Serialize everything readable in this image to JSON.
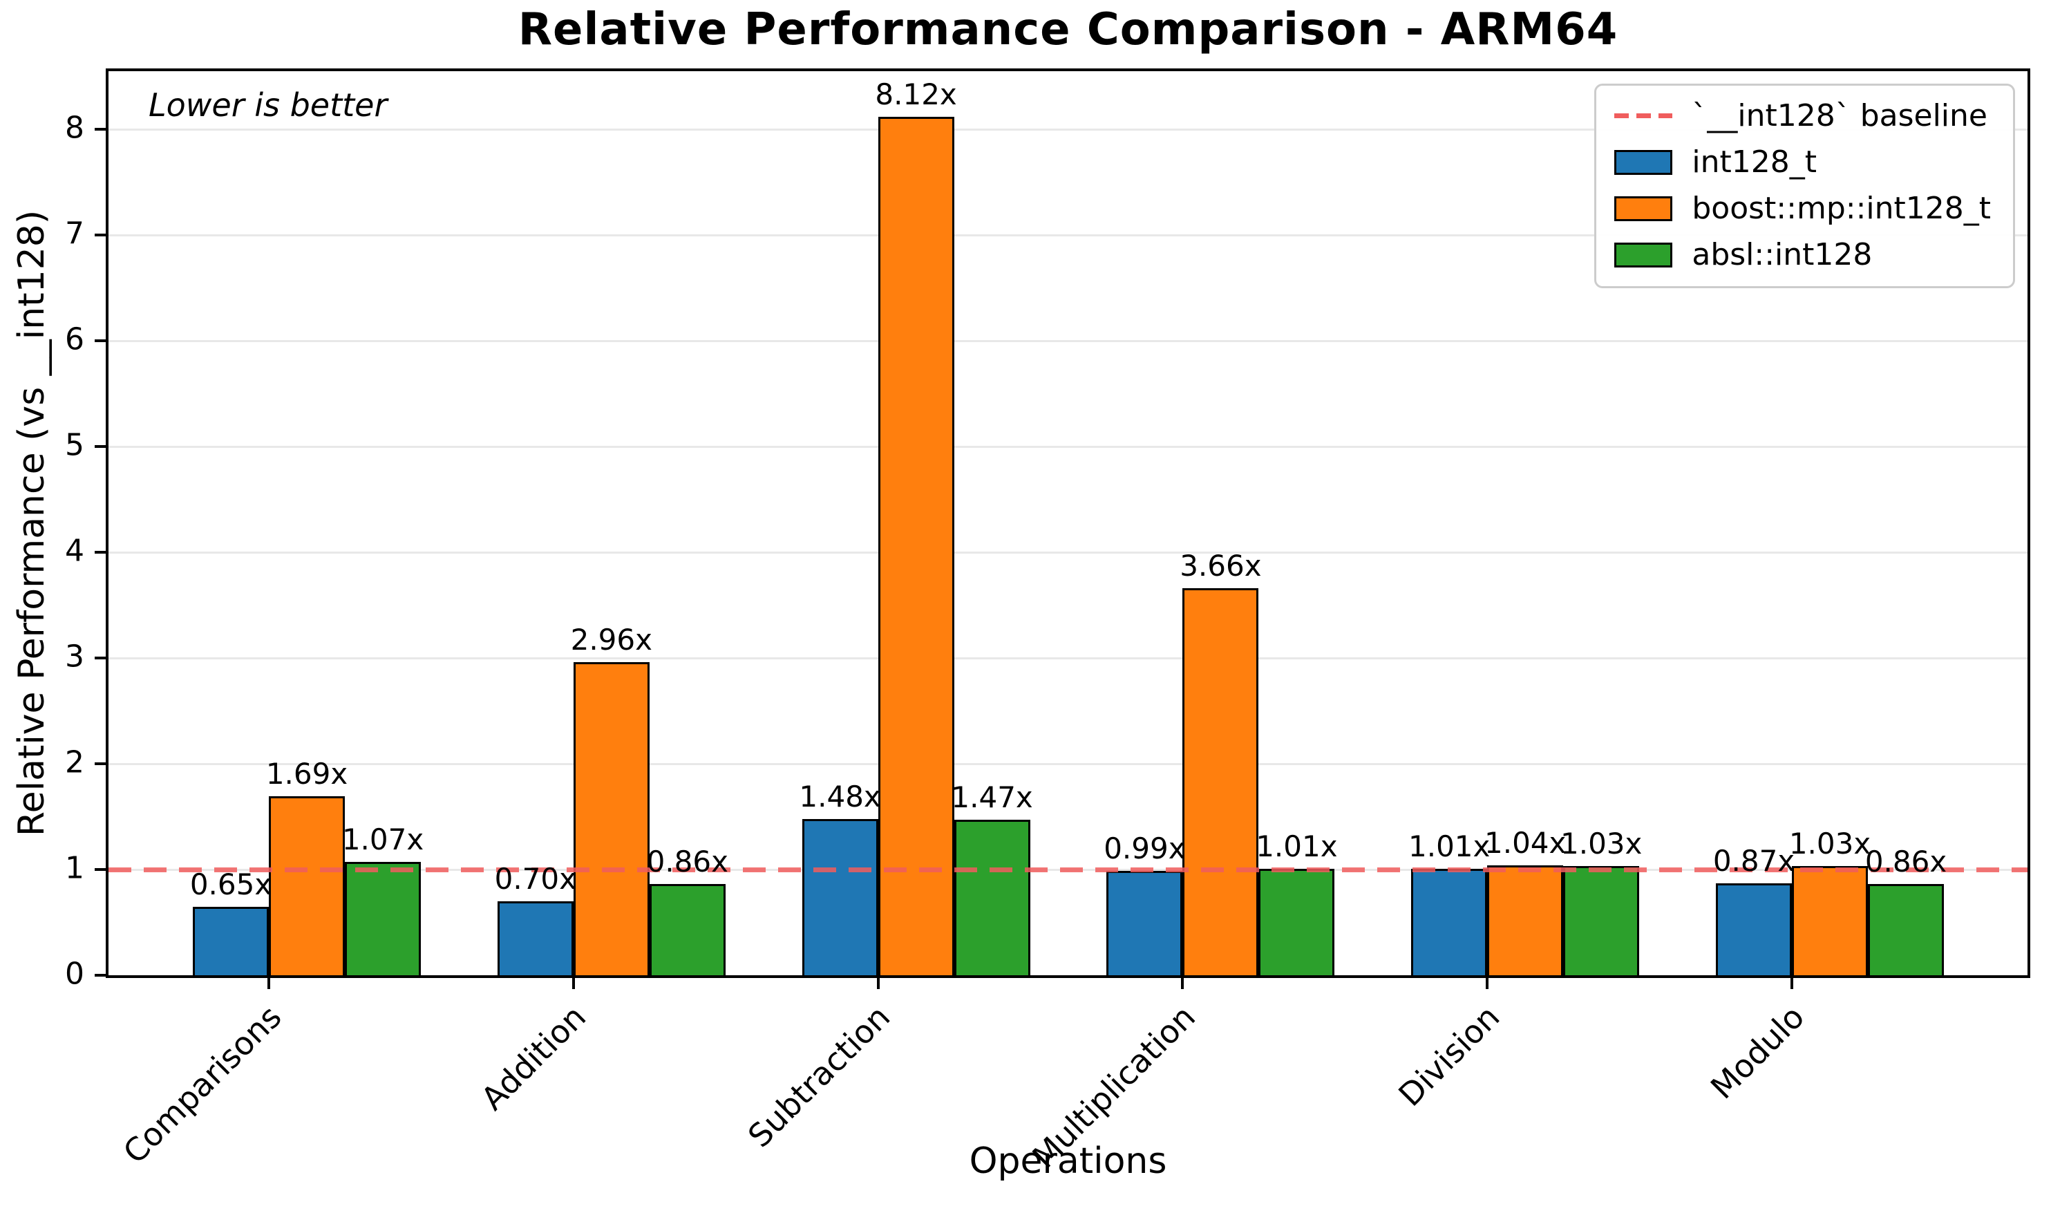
{
  "chart_data": {
    "type": "bar",
    "title": "Relative Performance Comparison - ARM64",
    "xlabel": "Operations",
    "ylabel": "Relative Performance (vs __int128)",
    "annotation": "Lower is better",
    "categories": [
      "Comparisons",
      "Addition",
      "Subtraction",
      "Multiplication",
      "Division",
      "Modulo"
    ],
    "series": [
      {
        "name": "int128_t",
        "color": "#1f77b4",
        "values": [
          0.65,
          0.7,
          1.48,
          0.99,
          1.01,
          0.87
        ],
        "labels": [
          "0.65x",
          "0.70x",
          "1.48x",
          "0.99x",
          "1.01x",
          "0.87x"
        ]
      },
      {
        "name": "boost::mp::int128_t",
        "color": "#ff7f0e",
        "values": [
          1.69,
          2.96,
          8.12,
          3.66,
          1.04,
          1.03
        ],
        "labels": [
          "1.69x",
          "2.96x",
          "8.12x",
          "3.66x",
          "1.04x",
          "1.03x"
        ]
      },
      {
        "name": "absl::int128",
        "color": "#2ca02c",
        "values": [
          1.07,
          0.86,
          1.47,
          1.01,
          1.03,
          0.86
        ],
        "labels": [
          "1.07x",
          "0.86x",
          "1.47x",
          "1.01x",
          "1.03x",
          "0.86x"
        ]
      }
    ],
    "baseline": {
      "value": 1.0,
      "label": "`__int128` baseline",
      "color": "#f05d5d",
      "style": "dashed"
    },
    "y_ticks": [
      0,
      1,
      2,
      3,
      4,
      5,
      6,
      7,
      8
    ],
    "ylim": [
      0,
      8.55
    ],
    "grid": "horizontal",
    "legend_position": "upper right",
    "lower_is_better": true
  }
}
